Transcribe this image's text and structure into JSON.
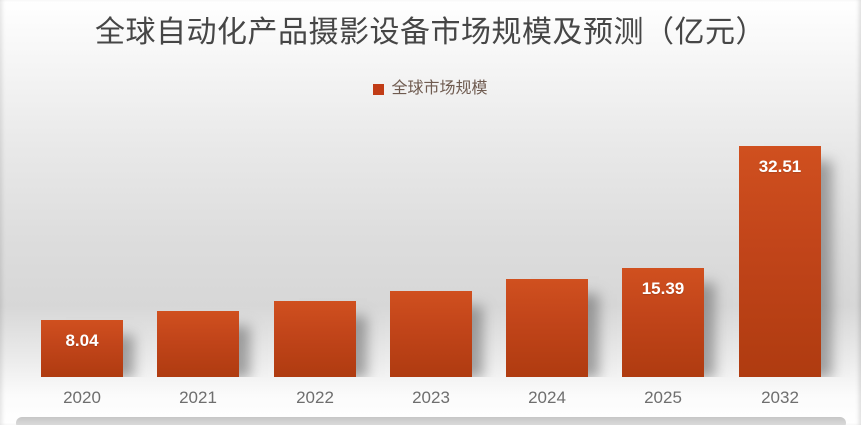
{
  "chart_data": {
    "type": "bar",
    "title": "全球自动化产品摄影设备市场规模及预测（亿元）",
    "legend": [
      "全球市场规模"
    ],
    "legend_position": "top",
    "unit": "亿元",
    "categories": [
      "2020",
      "2021",
      "2022",
      "2023",
      "2024",
      "2025",
      "2032"
    ],
    "values": [
      8.04,
      9.25,
      10.74,
      12.17,
      13.83,
      15.39,
      32.51
    ],
    "data_labels": [
      "8.04",
      "",
      "",
      "",
      "",
      "15.39",
      "32.51"
    ],
    "ylim": [
      0,
      35
    ],
    "grid": false,
    "colors": {
      "bar_gradient_top": "#D0501F",
      "bar_gradient_bottom": "#AF3B10",
      "legend_swatch": "#C13C16",
      "data_label_text": "#FFFFFF",
      "title_text": "#464646",
      "axis_label_text": "#6E6E6E",
      "legend_text": "#6F5B50",
      "floor": "#CDCDCD"
    }
  }
}
